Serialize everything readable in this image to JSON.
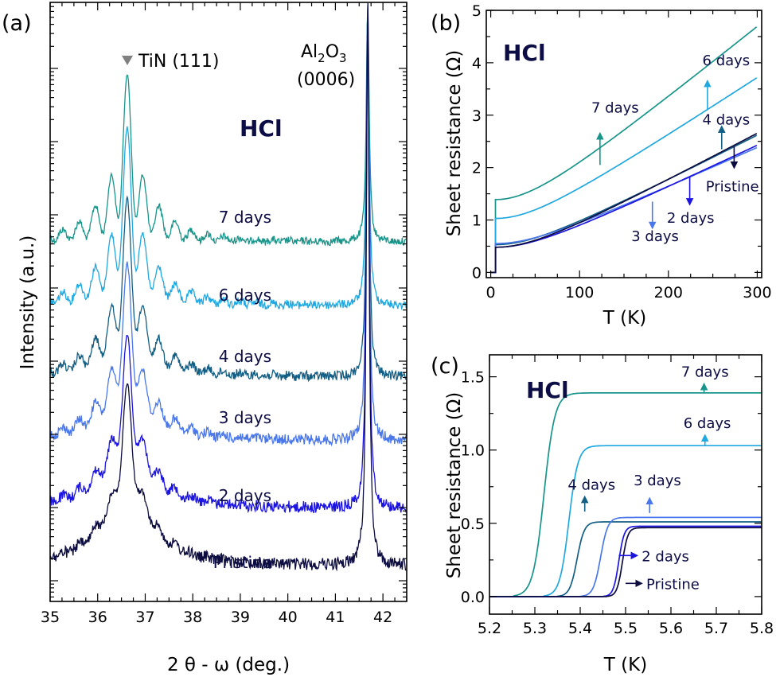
{
  "panels": {
    "a": {
      "label": "(a)"
    },
    "b": {
      "label": "(b)"
    },
    "c": {
      "label": "(c)"
    }
  },
  "chart_data": [
    {
      "panel": "(a)",
      "type": "line",
      "xlabel": "2 θ - ω (deg.)",
      "ylabel": "Intensity (a.u.)",
      "y_scale": "log",
      "xlim": [
        35,
        42.5
      ],
      "x_ticks": [
        "35",
        "36",
        "37",
        "38",
        "39",
        "40",
        "41",
        "42"
      ],
      "y_ticks": [],
      "annotations": {
        "hcl": "HCl",
        "tin_peak": "TiN (111)",
        "tin_marker_color": "#808080",
        "al2o3_main": "Al",
        "al2o3_sub1": "2",
        "al2o3_mid": "O",
        "al2o3_sub2": "3",
        "al2o3_index": "(0006)"
      },
      "tin_peak_position": 36.62,
      "substrate_peak_position": 41.68,
      "series": [
        {
          "label": "7 days",
          "color": "#18958a",
          "label_x": 39.1,
          "offset_decades": 5
        },
        {
          "label": "6 days",
          "color": "#20a8e0",
          "label_x": 39.1,
          "offset_decades": 4
        },
        {
          "label": "4 days",
          "color": "#135e85",
          "label_x": 39.1,
          "offset_decades": 3
        },
        {
          "label": "3 days",
          "color": "#4a78ea",
          "label_x": 39.1,
          "offset_decades": 2
        },
        {
          "label": "2 days",
          "color": "#1c14e0",
          "label_x": 39.1,
          "offset_decades": 1
        },
        {
          "label": "Pristine",
          "color": "#0c0c40",
          "label_x": 39.05,
          "offset_decades": 0
        }
      ]
    },
    {
      "panel": "(b)",
      "type": "line",
      "xlabel": "T (K)",
      "ylabel": "Sheet resistance (Ω)",
      "xlim": [
        -5,
        305
      ],
      "ylim": [
        -0.1,
        5
      ],
      "x_ticks": [
        0,
        100,
        200,
        300
      ],
      "y_ticks": [
        0,
        1,
        2,
        3,
        4,
        5
      ],
      "annotation": "HCl",
      "series": [
        {
          "label": "7 days",
          "color": "#18958a",
          "tc": 5.3,
          "r0": 1.39,
          "slope": 0.01372,
          "x_end": 300
        },
        {
          "label": "6 days",
          "color": "#20a8e0",
          "tc": 5.35,
          "r0": 1.03,
          "slope": 0.01117,
          "x_end": 300
        },
        {
          "label": "4 days",
          "color": "#135e85",
          "tc": 5.38,
          "r0": 0.53,
          "slope": 0.00868,
          "x_end": 300
        },
        {
          "label": "3 days",
          "color": "#4a78ea",
          "tc": 5.42,
          "r0": 0.55,
          "slope": 0.00762,
          "x_end": 300
        },
        {
          "label": "2 days",
          "color": "#1c14e0",
          "tc": 5.46,
          "r0": 0.48,
          "slope": 0.00809,
          "x_end": 300
        },
        {
          "label": "Pristine",
          "color": "#0c0c40",
          "tc": 5.46,
          "r0": 0.48,
          "slope": 0.00904,
          "x_end": 300
        }
      ],
      "labels": [
        {
          "text": "7 days",
          "color": "#18958a",
          "x": 140,
          "y": 3.05,
          "arrow": {
            "x": 123,
            "y0": 2.05,
            "y1": 2.65
          }
        },
        {
          "text": "6 days",
          "color": "#20a8e0",
          "x": 265,
          "y": 3.95,
          "arrow": {
            "x": 244,
            "y0": 3.1,
            "y1": 3.65
          }
        },
        {
          "text": "4 days",
          "color": "#135e85",
          "x": 265,
          "y": 2.82,
          "arrow": {
            "x": 260,
            "y0": 2.35,
            "y1": 2.78
          }
        },
        {
          "text": "Pristine",
          "color": "#0c0c40",
          "x": 272,
          "y": 1.55,
          "arrow": {
            "x": 274,
            "y0": 2.4,
            "y1": 2.0
          }
        },
        {
          "text": "2 days",
          "color": "#1c14e0",
          "x": 225,
          "y": 0.95,
          "arrow": {
            "x": 224,
            "y0": 1.82,
            "y1": 1.3
          }
        },
        {
          "text": "3 days",
          "color": "#4a78ea",
          "x": 185,
          "y": 0.6,
          "arrow": {
            "x": 182,
            "y0": 1.35,
            "y1": 0.85
          }
        }
      ]
    },
    {
      "panel": "(c)",
      "type": "line",
      "xlabel": "T (K)",
      "ylabel": "Sheet resistance (Ω)",
      "xlim": [
        5.2,
        5.8
      ],
      "ylim": [
        -0.12,
        1.65
      ],
      "x_ticks": [
        "5.2",
        "5.3",
        "5.4",
        "5.5",
        "5.6",
        "5.7",
        "5.8"
      ],
      "y_ticks": [
        "0.0",
        "0.5",
        "1.0",
        "1.5"
      ],
      "annotation": "HCl",
      "series": [
        {
          "label": "7 days",
          "color": "#18958a",
          "tc": 5.3,
          "width": 0.012,
          "r_normal": 1.39
        },
        {
          "label": "6 days",
          "color": "#20a8e0",
          "tc": 5.355,
          "width": 0.01,
          "r_normal": 1.03
        },
        {
          "label": "4 days",
          "color": "#135e85",
          "tc": 5.373,
          "width": 0.008,
          "r_normal": 0.51
        },
        {
          "label": "3 days",
          "color": "#4a78ea",
          "tc": 5.425,
          "width": 0.008,
          "r_normal": 0.54
        },
        {
          "label": "2 days",
          "color": "#1c14e0",
          "tc": 5.465,
          "width": 0.006,
          "r_normal": 0.48
        },
        {
          "label": "Pristine",
          "color": "#0c0c40",
          "tc": 5.473,
          "width": 0.006,
          "r_normal": 0.47
        }
      ],
      "labels": [
        {
          "text": "7 days",
          "color": "#18958a",
          "x": 5.675,
          "y": 1.5,
          "arrow_dir": "up",
          "arrow": {
            "x": 5.673,
            "y0": 1.39,
            "y1": 1.45
          }
        },
        {
          "text": "6 days",
          "color": "#20a8e0",
          "x": 5.68,
          "y": 1.15,
          "arrow_dir": "up",
          "arrow": {
            "x": 5.675,
            "y0": 1.03,
            "y1": 1.1
          }
        },
        {
          "text": "4 days",
          "color": "#135e85",
          "x": 5.425,
          "y": 0.73,
          "arrow_dir": "up",
          "arrow": {
            "x": 5.41,
            "y0": 0.58,
            "y1": 0.68
          }
        },
        {
          "text": "3 days",
          "color": "#4a78ea",
          "x": 5.57,
          "y": 0.76,
          "arrow_dir": "up",
          "arrow": {
            "x": 5.553,
            "y0": 0.57,
            "y1": 0.67
          }
        },
        {
          "text": "2 days",
          "color": "#1c14e0",
          "x": 5.56,
          "y": 0.28,
          "arrow_dir": "right",
          "arrow": {
            "x0": 5.485,
            "x1": 5.525,
            "y": 0.28
          }
        },
        {
          "text": "Pristine",
          "color": "#0c0c40",
          "x": 5.595,
          "y": 0.09,
          "arrow_dir": "right",
          "arrow": {
            "x0": 5.5,
            "x1": 5.535,
            "y": 0.09
          }
        }
      ]
    }
  ]
}
